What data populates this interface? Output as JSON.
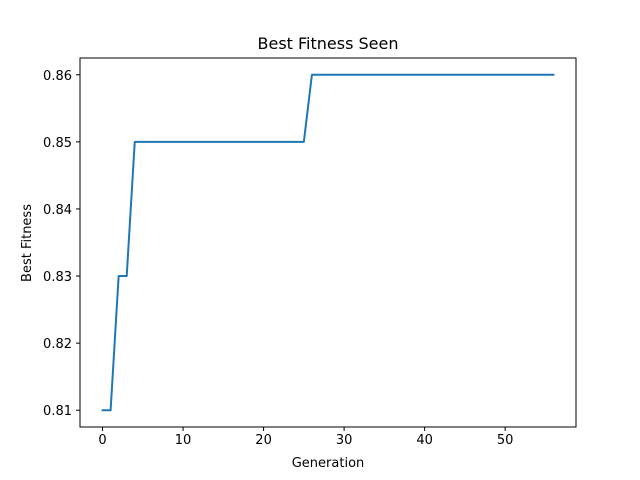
{
  "chart_data": {
    "type": "line",
    "title": "Best Fitness Seen",
    "xlabel": "Generation",
    "ylabel": "Best Fitness",
    "xlim": [
      -2.8,
      58.8
    ],
    "ylim": [
      0.8075,
      0.8625
    ],
    "xticks": [
      0,
      10,
      20,
      30,
      40,
      50
    ],
    "xtick_labels": [
      "0",
      "10",
      "20",
      "30",
      "40",
      "50"
    ],
    "yticks": [
      0.81,
      0.82,
      0.83,
      0.84,
      0.85,
      0.86
    ],
    "ytick_labels": [
      "0.81",
      "0.82",
      "0.83",
      "0.84",
      "0.85",
      "0.86"
    ],
    "grid": false,
    "series": [
      {
        "color": "#1f77b4",
        "x": [
          0,
          1,
          2,
          3,
          4,
          25,
          26,
          56
        ],
        "y": [
          0.81,
          0.81,
          0.83,
          0.83,
          0.85,
          0.85,
          0.86,
          0.86
        ]
      }
    ]
  }
}
